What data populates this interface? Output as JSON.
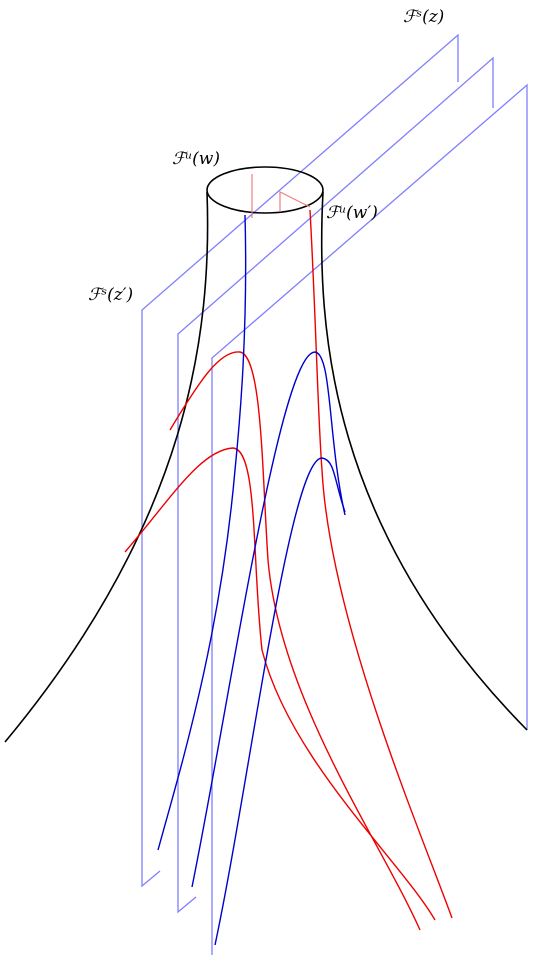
{
  "labels": {
    "fs_z": "ℱˢ(z)",
    "fu_w": "ℱᵘ(w)",
    "fu_w_prime": "ℱᵘ(w′)",
    "fs_z_prime": "ℱˢ(z′)"
  }
}
